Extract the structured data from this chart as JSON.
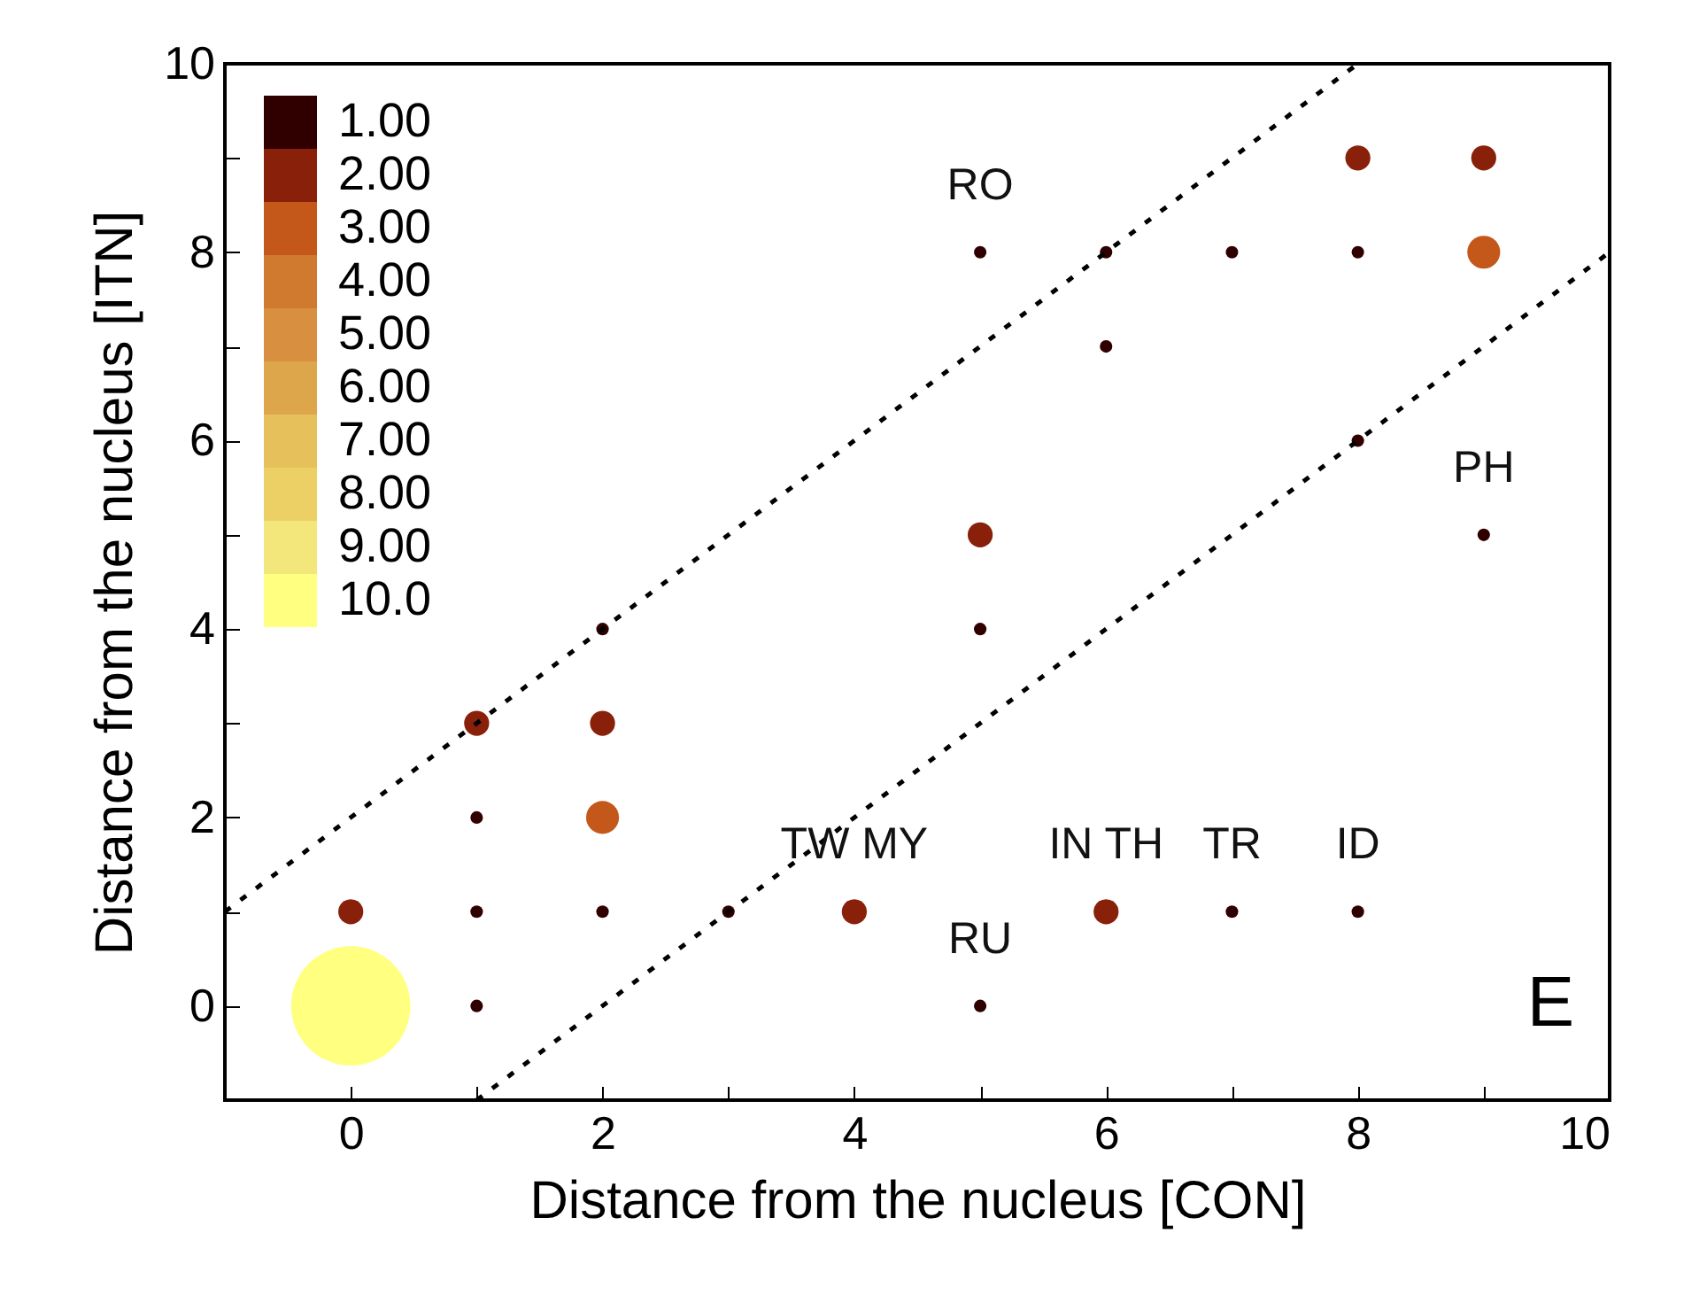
{
  "chart_data": {
    "type": "bubble",
    "xlabel": "Distance from the nucleus [CON]",
    "ylabel": "Distance from the nucleus [ITN]",
    "xlim": [
      -1,
      10
    ],
    "ylim": [
      -1,
      10
    ],
    "xticks": [
      0,
      {
        "value": 1,
        "label": null
      },
      2,
      {
        "value": 3,
        "label": null
      },
      4,
      {
        "value": 5,
        "label": null
      },
      6,
      {
        "value": 7,
        "label": null
      },
      8,
      {
        "value": 9,
        "label": null
      },
      10
    ],
    "yticks": [
      0,
      {
        "value": 1,
        "label": null
      },
      2,
      {
        "value": 3,
        "label": null
      },
      4,
      {
        "value": 5,
        "label": null
      },
      6,
      {
        "value": 7,
        "label": null
      },
      8,
      {
        "value": 9,
        "label": null
      },
      10
    ],
    "legend": "top left",
    "grid": false,
    "series": [
      {
        "type": "bubble",
        "name": "1.00",
        "color": "#300000",
        "x": [
          1,
          1,
          1,
          2,
          2,
          3,
          5,
          5,
          5,
          6,
          6,
          7,
          7,
          8,
          8,
          8,
          9
        ],
        "values": [
          0,
          1,
          2,
          1,
          4,
          1,
          0,
          4,
          8,
          7,
          8,
          1,
          8,
          1,
          6,
          8,
          5
        ],
        "sizes": [
          0.011,
          0.011,
          0.011,
          0.011,
          0.011,
          0.011,
          0.011,
          0.011,
          0.011,
          0.011,
          0.011,
          0.011,
          0.011,
          0.011,
          0.011,
          0.011,
          0.011
        ]
      },
      {
        "type": "bubble",
        "name": "2.00",
        "color": "#88200a",
        "x": [
          0,
          1,
          2,
          4,
          5,
          6,
          8,
          9
        ],
        "values": [
          1,
          3,
          3,
          1,
          5,
          1,
          9,
          9
        ],
        "sizes": [
          0.044,
          0.044,
          0.044,
          0.044,
          0.044,
          0.044,
          0.044,
          0.044
        ]
      },
      {
        "type": "bubble",
        "name": "3.00",
        "color": "#c4581a",
        "x": [
          2,
          9
        ],
        "values": [
          2,
          8
        ],
        "sizes": [
          0.076,
          0.076
        ]
      },
      {
        "type": "bubble",
        "name": "4.00",
        "color": "#d07a30"
      },
      {
        "type": "bubble",
        "name": "5.00",
        "color": "#d98f40"
      },
      {
        "type": "bubble",
        "name": "6.00",
        "color": "#dda64a"
      },
      {
        "type": "bubble",
        "name": "7.00",
        "color": "#e6c05a"
      },
      {
        "type": "bubble",
        "name": "8.00",
        "color": "#ecd066"
      },
      {
        "type": "bubble",
        "name": "9.00",
        "color": "#f3e67a"
      },
      {
        "type": "bubble",
        "name": "10.0",
        "color": "#ffff80",
        "x": [
          0
        ],
        "values": [
          0
        ],
        "sizes": [
          1
        ]
      },
      {
        "type": "line",
        "x": [
          -1,
          8
        ],
        "values": [
          1,
          10
        ],
        "color": "#000000",
        "line_style": "dashed"
      },
      {
        "type": "line",
        "x": [
          1,
          10
        ],
        "values": [
          -1,
          8
        ],
        "color": "#000000",
        "line_style": "dashed"
      }
    ],
    "annotations": [
      {
        "text": "RO",
        "x": 5,
        "y": 8
      },
      {
        "text": "TW MY",
        "x": 4,
        "y": 1
      },
      {
        "text": "RU",
        "x": 5,
        "y": 0
      },
      {
        "text": "IN TH",
        "x": 6,
        "y": 1
      },
      {
        "text": "TR",
        "x": 7,
        "y": 1
      },
      {
        "text": "ID",
        "x": 8,
        "y": 1
      },
      {
        "text": "PH",
        "x": 9,
        "y": 5
      },
      "E"
    ]
  }
}
